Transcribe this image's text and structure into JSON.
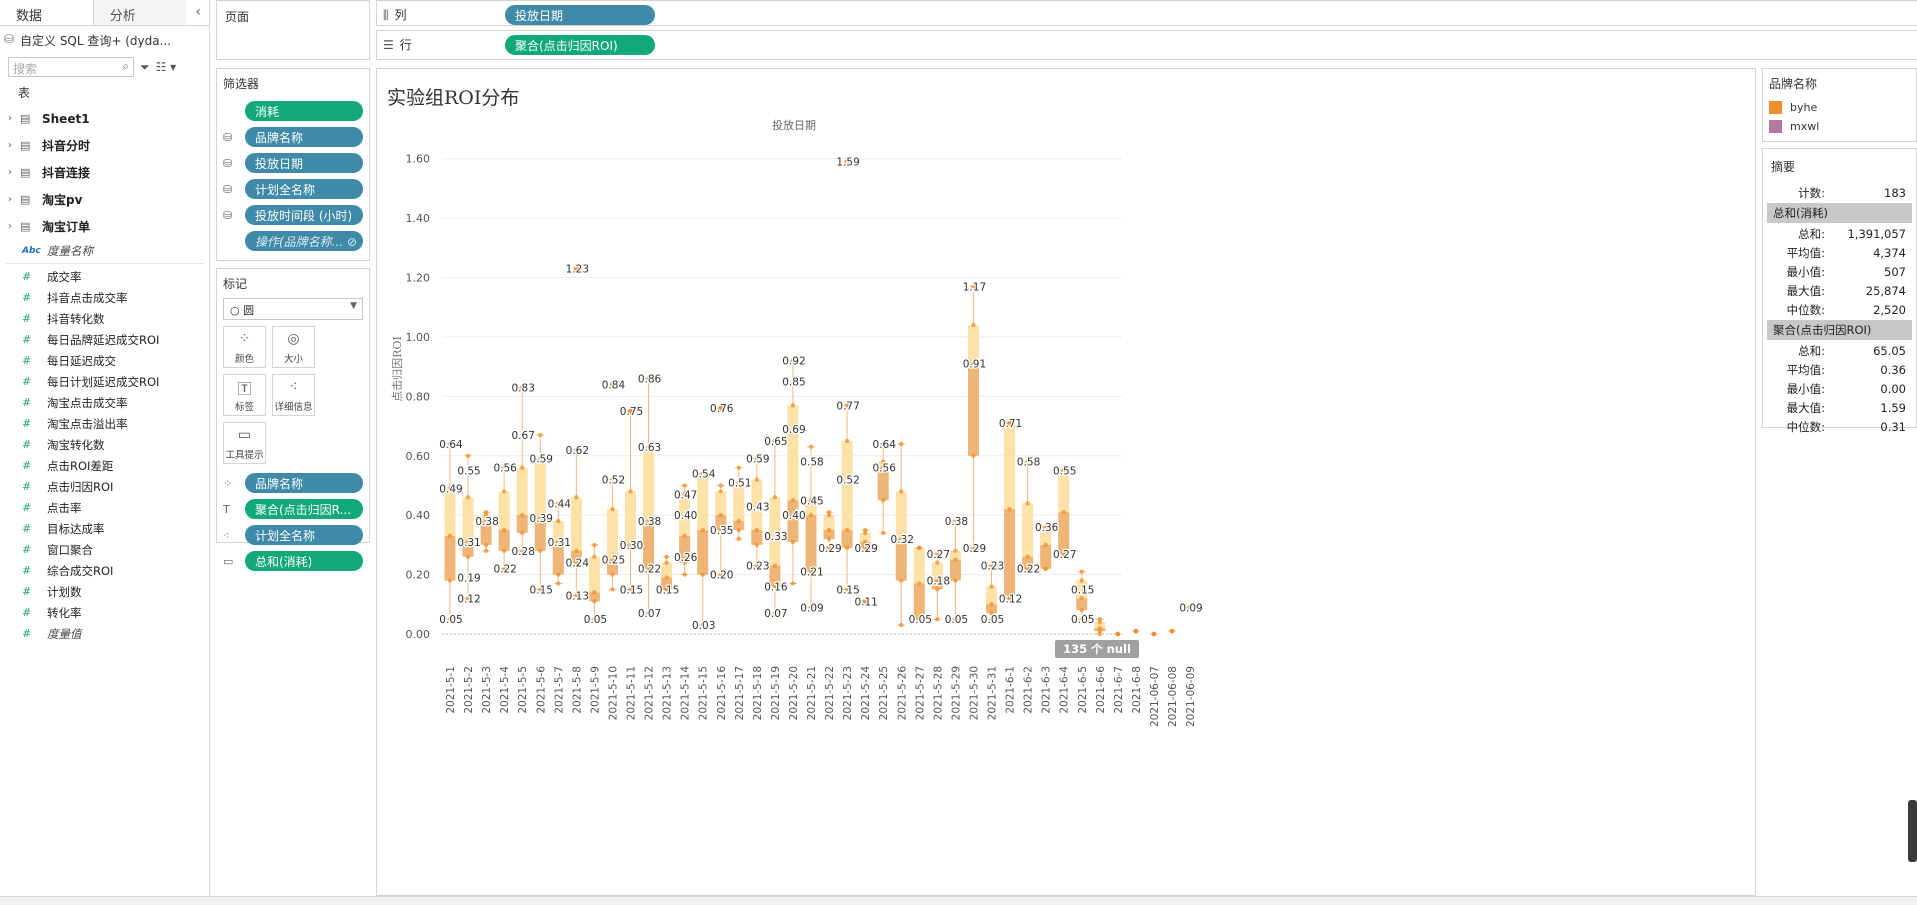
{
  "left_pane": {
    "tabs": [
      "数据",
      "分析"
    ],
    "collapse_icon": "chevron-left-icon",
    "datasource": "自定义 SQL 查询+ (dyda...",
    "search_placeholder": "搜索",
    "tables_header": "表",
    "tables": [
      "Sheet1",
      "抖音分时",
      "抖音连接",
      "淘宝pv",
      "淘宝订单"
    ],
    "dimension_field": "度量名称",
    "measures": [
      "成交率",
      "抖音点击成交率",
      "抖音转化数",
      "每日品牌延迟成交ROI",
      "每日延迟成交",
      "每日计划延迟成交ROI",
      "淘宝点击成交率",
      "淘宝点击溢出率",
      "淘宝转化数",
      "点击ROI差距",
      "点击归因ROI",
      "点击率",
      "目标达成率",
      "窗口聚合",
      "综合成交ROI",
      "计划数",
      "转化率"
    ],
    "measure_values": "度量值"
  },
  "pages_shelf": {
    "title": "页面"
  },
  "filters_shelf": {
    "title": "筛选器",
    "items": [
      {
        "label": "消耗",
        "kind": "measure"
      },
      {
        "label": "品牌名称",
        "kind": "dimension"
      },
      {
        "label": "投放日期",
        "kind": "dimension"
      },
      {
        "label": "计划全名称",
        "kind": "dimension"
      },
      {
        "label": "投放时间段 (小时)",
        "kind": "dimension"
      },
      {
        "label": "操作(品牌名称...",
        "kind": "set"
      }
    ]
  },
  "marks_card": {
    "title": "标记",
    "mark_type": "圆",
    "buttons": [
      "颜色",
      "大小",
      "标签",
      "详细信息",
      "工具提示"
    ],
    "fields": [
      {
        "label": "品牌名称",
        "kind": "dimension"
      },
      {
        "label": "聚合(点击归因R...",
        "kind": "measure"
      },
      {
        "label": "计划全名称",
        "kind": "dimension"
      },
      {
        "label": "总和(消耗)",
        "kind": "measure"
      }
    ]
  },
  "columns_shelf": {
    "label": "列",
    "pill": "投放日期"
  },
  "rows_shelf": {
    "label": "行",
    "pill": "聚合(点击归因ROI)"
  },
  "viz": {
    "title": "实验组ROI分布",
    "null_badge": "135 个 null"
  },
  "legend": {
    "title": "品牌名称",
    "items": [
      {
        "label": "byhe",
        "color": "#f28e2b"
      },
      {
        "label": "mxwl",
        "color": "#b07aa1"
      }
    ]
  },
  "summary": {
    "title": "摘要",
    "count_label": "计数:",
    "count_value": "183",
    "groups": [
      {
        "name": "总和(消耗)",
        "rows": [
          [
            "总和:",
            "1,391,057"
          ],
          [
            "平均值:",
            "4,374"
          ],
          [
            "最小值:",
            "507"
          ],
          [
            "最大值:",
            "25,874"
          ],
          [
            "中位数:",
            "2,520"
          ]
        ]
      },
      {
        "name": "聚合(点击归因ROI)",
        "rows": [
          [
            "总和:",
            "65.05"
          ],
          [
            "平均值:",
            "0.36"
          ],
          [
            "最小值:",
            "0.00"
          ],
          [
            "最大值:",
            "1.59"
          ],
          [
            "中位数:",
            "0.31"
          ]
        ]
      }
    ]
  },
  "chart_data": {
    "type": "box",
    "title": "实验组ROI分布",
    "xlabel": "投放日期",
    "ylabel": "点击归因ROI",
    "ylim": [
      0,
      1.7
    ],
    "yticks": [
      "0.00",
      "0.20",
      "0.40",
      "0.60",
      "0.80",
      "1.00",
      "1.20",
      "1.40",
      "1.60"
    ],
    "categories": [
      "2021-5-1",
      "2021-5-2",
      "2021-5-3",
      "2021-5-4",
      "2021-5-5",
      "2021-5-6",
      "2021-5-7",
      "2021-5-8",
      "2021-5-9",
      "2021-5-10",
      "2021-5-11",
      "2021-5-12",
      "2021-5-13",
      "2021-5-14",
      "2021-5-15",
      "2021-5-16",
      "2021-5-17",
      "2021-5-18",
      "2021-5-19",
      "2021-5-20",
      "2021-5-21",
      "2021-5-22",
      "2021-5-23",
      "2021-5-24",
      "2021-5-25",
      "2021-5-26",
      "2021-5-27",
      "2021-5-28",
      "2021-5-29",
      "2021-5-30",
      "2021-5-31",
      "2021-6-1",
      "2021-6-2",
      "2021-6-3",
      "2021-6-4",
      "2021-6-5",
      "2021-6-6",
      "2021-6-7",
      "2021-6-8",
      "2021-06-07",
      "2021-06-08",
      "2021-06-09"
    ],
    "boxes": [
      {
        "min": 0.05,
        "q1": 0.18,
        "median": 0.33,
        "q3": 0.49,
        "max": 0.64
      },
      {
        "min": 0.12,
        "q1": 0.26,
        "median": 0.31,
        "q3": 0.46,
        "max": 0.6
      },
      {
        "min": 0.28,
        "q1": 0.3,
        "median": 0.38,
        "q3": 0.4,
        "max": 0.41
      },
      {
        "min": 0.22,
        "q1": 0.28,
        "median": 0.35,
        "q3": 0.48,
        "max": 0.56
      },
      {
        "min": 0.28,
        "q1": 0.34,
        "median": 0.4,
        "q3": 0.56,
        "max": 0.83
      },
      {
        "min": 0.15,
        "q1": 0.28,
        "median": 0.39,
        "q3": 0.59,
        "max": 0.67
      },
      {
        "min": 0.17,
        "q1": 0.2,
        "median": 0.31,
        "q3": 0.38,
        "max": 0.44
      },
      {
        "min": 0.13,
        "q1": 0.24,
        "median": 0.28,
        "q3": 0.46,
        "max": 0.62
      },
      {
        "min": 0.05,
        "q1": 0.11,
        "median": 0.14,
        "q3": 0.26,
        "max": 0.3
      },
      {
        "min": 0.15,
        "q1": 0.2,
        "median": 0.25,
        "q3": 0.42,
        "max": 0.52
      },
      {
        "min": 0.15,
        "q1": 0.29,
        "median": 0.3,
        "q3": 0.48,
        "max": 0.75
      },
      {
        "min": 0.07,
        "q1": 0.22,
        "median": 0.38,
        "q3": 0.63,
        "max": 0.86
      },
      {
        "min": 0.15,
        "q1": 0.15,
        "median": 0.19,
        "q3": 0.24,
        "max": 0.26
      },
      {
        "min": 0.2,
        "q1": 0.24,
        "median": 0.33,
        "q3": 0.47,
        "max": 0.5
      },
      {
        "min": 0.03,
        "q1": 0.2,
        "median": 0.35,
        "q3": 0.54,
        "max": 0.54
      },
      {
        "min": 0.2,
        "q1": 0.35,
        "median": 0.4,
        "q3": 0.48,
        "max": 0.5
      },
      {
        "min": 0.32,
        "q1": 0.35,
        "median": 0.38,
        "q3": 0.51,
        "max": 0.56
      },
      {
        "min": 0.23,
        "q1": 0.3,
        "median": 0.35,
        "q3": 0.52,
        "max": 0.59
      },
      {
        "min": 0.07,
        "q1": 0.16,
        "median": 0.23,
        "q3": 0.46,
        "max": 0.65
      },
      {
        "min": 0.17,
        "q1": 0.31,
        "median": 0.45,
        "q3": 0.77,
        "max": 0.92
      },
      {
        "min": 0.09,
        "q1": 0.21,
        "median": 0.4,
        "q3": 0.45,
        "max": 0.63
      },
      {
        "min": 0.29,
        "q1": 0.32,
        "median": 0.35,
        "q3": 0.4,
        "max": 0.41
      },
      {
        "min": 0.15,
        "q1": 0.29,
        "median": 0.35,
        "q3": 0.65,
        "max": 0.77
      },
      {
        "min": 0.29,
        "q1": 0.29,
        "median": 0.31,
        "q3": 0.34,
        "max": 0.35
      },
      {
        "min": 0.34,
        "q1": 0.45,
        "median": 0.56,
        "q3": 0.58,
        "max": 0.64
      },
      {
        "min": 0.03,
        "q1": 0.18,
        "median": 0.32,
        "q3": 0.48,
        "max": 0.64
      },
      {
        "min": 0.05,
        "q1": 0.05,
        "median": 0.17,
        "q3": 0.29,
        "max": 0.29
      },
      {
        "min": 0.05,
        "q1": 0.15,
        "median": 0.18,
        "q3": 0.24,
        "max": 0.27
      },
      {
        "min": 0.05,
        "q1": 0.18,
        "median": 0.25,
        "q3": 0.28,
        "max": 0.38
      },
      {
        "min": 0.29,
        "q1": 0.6,
        "median": 0.91,
        "q3": 1.04,
        "max": 1.17
      },
      {
        "min": 0.05,
        "q1": 0.07,
        "median": 0.1,
        "q3": 0.16,
        "max": 0.23
      },
      {
        "min": 0.12,
        "q1": 0.13,
        "median": 0.42,
        "q3": 0.71,
        "max": 0.71
      },
      {
        "min": 0.22,
        "q1": 0.22,
        "median": 0.26,
        "q3": 0.44,
        "max": 0.58
      },
      {
        "min": 0.22,
        "q1": 0.22,
        "median": 0.3,
        "q3": 0.36,
        "max": 0.36
      },
      {
        "min": 0.27,
        "q1": 0.27,
        "median": 0.41,
        "q3": 0.55,
        "max": 0.55
      },
      {
        "min": 0.05,
        "q1": 0.08,
        "median": 0.12,
        "q3": 0.18,
        "max": 0.21
      },
      {
        "min": 0.0,
        "q1": 0.01,
        "median": 0.02,
        "q3": 0.04,
        "max": 0.05
      },
      {
        "min": 0.0,
        "q1": 0.0,
        "median": 0.0,
        "q3": 0.0,
        "max": 0.0
      },
      {
        "min": 0.01,
        "q1": 0.01,
        "median": 0.01,
        "q3": 0.01,
        "max": 0.01
      },
      {
        "min": 0.0,
        "q1": 0.0,
        "median": 0.0,
        "q3": 0.0,
        "max": 0.0
      },
      {
        "min": 0.01,
        "q1": 0.01,
        "median": 0.01,
        "q3": 0.01,
        "max": 0.01
      },
      {
        "min": 0.09,
        "q1": 0.09,
        "median": 0.09,
        "q3": 0.09,
        "max": 0.09
      }
    ],
    "outliers": [
      {
        "cat": 7,
        "y": 1.23
      },
      {
        "cat": 22,
        "y": 1.59
      },
      {
        "cat": 9,
        "y": 0.84
      },
      {
        "cat": 10,
        "y": 0.75
      },
      {
        "cat": 15,
        "y": 0.76
      },
      {
        "cat": 23,
        "y": 0.11
      }
    ],
    "data_labels": [
      {
        "cat": 0,
        "y": 0.64,
        "text": "0.64"
      },
      {
        "cat": 0,
        "y": 0.49,
        "text": "0.49"
      },
      {
        "cat": 0,
        "y": 0.05,
        "text": "0.05"
      },
      {
        "cat": 1,
        "y": 0.55,
        "text": "0.55"
      },
      {
        "cat": 1,
        "y": 0.31,
        "text": "0.31"
      },
      {
        "cat": 1,
        "y": 0.19,
        "text": "0.19"
      },
      {
        "cat": 1,
        "y": 0.12,
        "text": "0.12"
      },
      {
        "cat": 2,
        "y": 0.38,
        "text": "0.38"
      },
      {
        "cat": 3,
        "y": 0.56,
        "text": "0.56"
      },
      {
        "cat": 3,
        "y": 0.22,
        "text": "0.22"
      },
      {
        "cat": 4,
        "y": 0.83,
        "text": "0.83"
      },
      {
        "cat": 4,
        "y": 0.67,
        "text": "0.67"
      },
      {
        "cat": 4,
        "y": 0.28,
        "text": "0.28"
      },
      {
        "cat": 5,
        "y": 0.59,
        "text": "0.59"
      },
      {
        "cat": 5,
        "y": 0.39,
        "text": "0.39"
      },
      {
        "cat": 5,
        "y": 0.15,
        "text": "0.15"
      },
      {
        "cat": 6,
        "y": 0.44,
        "text": "0.44"
      },
      {
        "cat": 6,
        "y": 0.31,
        "text": "0.31"
      },
      {
        "cat": 7,
        "y": 1.23,
        "text": "1.23"
      },
      {
        "cat": 7,
        "y": 0.62,
        "text": "0.62"
      },
      {
        "cat": 7,
        "y": 0.24,
        "text": "0.24"
      },
      {
        "cat": 7,
        "y": 0.13,
        "text": "0.13"
      },
      {
        "cat": 8,
        "y": 0.05,
        "text": "0.05"
      },
      {
        "cat": 9,
        "y": 0.84,
        "text": "0.84"
      },
      {
        "cat": 9,
        "y": 0.52,
        "text": "0.52"
      },
      {
        "cat": 9,
        "y": 0.25,
        "text": "0.25"
      },
      {
        "cat": 10,
        "y": 0.75,
        "text": "0.75"
      },
      {
        "cat": 10,
        "y": 0.3,
        "text": "0.30"
      },
      {
        "cat": 10,
        "y": 0.15,
        "text": "0.15"
      },
      {
        "cat": 11,
        "y": 0.86,
        "text": "0.86"
      },
      {
        "cat": 11,
        "y": 0.63,
        "text": "0.63"
      },
      {
        "cat": 11,
        "y": 0.38,
        "text": "0.38"
      },
      {
        "cat": 11,
        "y": 0.22,
        "text": "0.22"
      },
      {
        "cat": 11,
        "y": 0.07,
        "text": "0.07"
      },
      {
        "cat": 12,
        "y": 0.15,
        "text": "0.15"
      },
      {
        "cat": 13,
        "y": 0.47,
        "text": "0.47"
      },
      {
        "cat": 13,
        "y": 0.4,
        "text": "0.40"
      },
      {
        "cat": 13,
        "y": 0.26,
        "text": "0.26"
      },
      {
        "cat": 14,
        "y": 0.54,
        "text": "0.54"
      },
      {
        "cat": 14,
        "y": 0.03,
        "text": "0.03"
      },
      {
        "cat": 15,
        "y": 0.76,
        "text": "0.76"
      },
      {
        "cat": 15,
        "y": 0.35,
        "text": "0.35"
      },
      {
        "cat": 15,
        "y": 0.2,
        "text": "0.20"
      },
      {
        "cat": 16,
        "y": 0.51,
        "text": "0.51"
      },
      {
        "cat": 17,
        "y": 0.59,
        "text": "0.59"
      },
      {
        "cat": 17,
        "y": 0.43,
        "text": "0.43"
      },
      {
        "cat": 17,
        "y": 0.23,
        "text": "0.23"
      },
      {
        "cat": 18,
        "y": 0.65,
        "text": "0.65"
      },
      {
        "cat": 18,
        "y": 0.33,
        "text": "0.33"
      },
      {
        "cat": 18,
        "y": 0.16,
        "text": "0.16"
      },
      {
        "cat": 18,
        "y": 0.07,
        "text": "0.07"
      },
      {
        "cat": 19,
        "y": 0.92,
        "text": "0.92"
      },
      {
        "cat": 19,
        "y": 0.85,
        "text": "0.85"
      },
      {
        "cat": 19,
        "y": 0.69,
        "text": "0.69"
      },
      {
        "cat": 19,
        "y": 0.4,
        "text": "0.40"
      },
      {
        "cat": 20,
        "y": 0.58,
        "text": "0.58"
      },
      {
        "cat": 20,
        "y": 0.45,
        "text": "0.45"
      },
      {
        "cat": 20,
        "y": 0.21,
        "text": "0.21"
      },
      {
        "cat": 20,
        "y": 0.09,
        "text": "0.09"
      },
      {
        "cat": 21,
        "y": 0.29,
        "text": "0.29"
      },
      {
        "cat": 22,
        "y": 1.59,
        "text": "1.59"
      },
      {
        "cat": 22,
        "y": 0.77,
        "text": "0.77"
      },
      {
        "cat": 22,
        "y": 0.52,
        "text": "0.52"
      },
      {
        "cat": 22,
        "y": 0.15,
        "text": "0.15"
      },
      {
        "cat": 23,
        "y": 0.29,
        "text": "0.29"
      },
      {
        "cat": 23,
        "y": 0.11,
        "text": "0.11"
      },
      {
        "cat": 24,
        "y": 0.64,
        "text": "0.64"
      },
      {
        "cat": 24,
        "y": 0.56,
        "text": "0.56"
      },
      {
        "cat": 25,
        "y": 0.32,
        "text": "0.32"
      },
      {
        "cat": 26,
        "y": 0.05,
        "text": "0.05"
      },
      {
        "cat": 27,
        "y": 0.27,
        "text": "0.27"
      },
      {
        "cat": 27,
        "y": 0.18,
        "text": "0.18"
      },
      {
        "cat": 28,
        "y": 0.38,
        "text": "0.38"
      },
      {
        "cat": 28,
        "y": 0.05,
        "text": "0.05"
      },
      {
        "cat": 29,
        "y": 1.17,
        "text": "1.17"
      },
      {
        "cat": 29,
        "y": 0.91,
        "text": "0.91"
      },
      {
        "cat": 29,
        "y": 0.29,
        "text": "0.29"
      },
      {
        "cat": 30,
        "y": 0.23,
        "text": "0.23"
      },
      {
        "cat": 30,
        "y": 0.05,
        "text": "0.05"
      },
      {
        "cat": 31,
        "y": 0.71,
        "text": "0.71"
      },
      {
        "cat": 31,
        "y": 0.12,
        "text": "0.12"
      },
      {
        "cat": 32,
        "y": 0.58,
        "text": "0.58"
      },
      {
        "cat": 32,
        "y": 0.22,
        "text": "0.22"
      },
      {
        "cat": 33,
        "y": 0.36,
        "text": "0.36"
      },
      {
        "cat": 34,
        "y": 0.55,
        "text": "0.55"
      },
      {
        "cat": 34,
        "y": 0.27,
        "text": "0.27"
      },
      {
        "cat": 35,
        "y": 0.15,
        "text": "0.15"
      },
      {
        "cat": 35,
        "y": 0.05,
        "text": "0.05"
      },
      {
        "cat": 41,
        "y": 0.09,
        "text": "0.09"
      }
    ],
    "colors": {
      "box_light": "#fde2a8",
      "box_dark": "#eeb577",
      "point": "#f28e2b",
      "whisker": "#f5b97a"
    }
  }
}
